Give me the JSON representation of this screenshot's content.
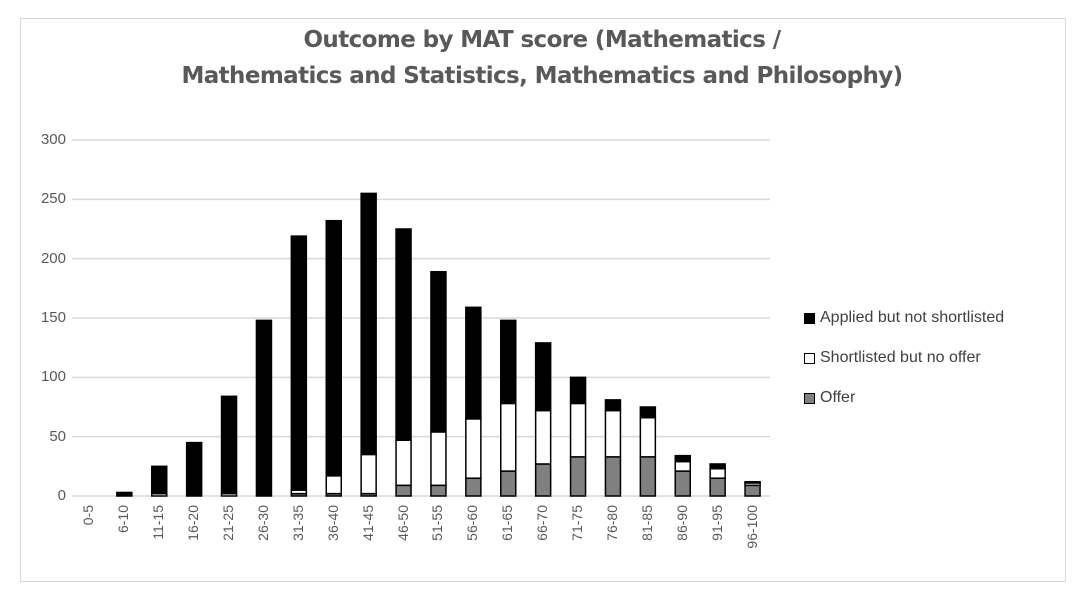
{
  "chart_data": {
    "type": "bar",
    "stacked": true,
    "title": "Outcome by MAT score (Mathematics / Mathematics and Statistics, Mathematics and Philosophy)",
    "title_lines": [
      "Outcome by MAT score (Mathematics /",
      "Mathematics and Statistics, Mathematics and Philosophy)"
    ],
    "xlabel": "",
    "ylabel": "",
    "ylim": [
      0,
      300
    ],
    "yticks": [
      0,
      50,
      100,
      150,
      200,
      250,
      300
    ],
    "grid": true,
    "legend_position": "right",
    "categories": [
      "0-5",
      "6-10",
      "11-15",
      "16-20",
      "21-25",
      "26-30",
      "31-35",
      "36-40",
      "41-45",
      "46-50",
      "51-55",
      "56-60",
      "61-65",
      "66-70",
      "71-75",
      "76-80",
      "81-85",
      "86-90",
      "91-95",
      "96-100"
    ],
    "series": [
      {
        "name": "Offer",
        "color": "#808080",
        "values": [
          0,
          0,
          0,
          0,
          0,
          0,
          2,
          2,
          2,
          9,
          9,
          15,
          21,
          27,
          33,
          33,
          33,
          21,
          15,
          9
        ]
      },
      {
        "name": "Shortlisted but no offer",
        "color": "#ffffff",
        "values": [
          0,
          0,
          2,
          0,
          2,
          0,
          3,
          15,
          33,
          38,
          45,
          50,
          57,
          45,
          45,
          39,
          33,
          8,
          8,
          2
        ]
      },
      {
        "name": "Applied but not shortlisted",
        "color": "#000000",
        "values": [
          0,
          3,
          23,
          45,
          82,
          148,
          214,
          215,
          220,
          178,
          135,
          94,
          70,
          57,
          22,
          9,
          9,
          5,
          4,
          1
        ]
      }
    ],
    "totals": [
      0,
      3,
      25,
      45,
      84,
      148,
      219,
      232,
      255,
      225,
      189,
      159,
      148,
      129,
      100,
      81,
      75,
      34,
      27,
      12
    ]
  },
  "legend": [
    {
      "label": "Applied but not shortlisted",
      "color": "#000000"
    },
    {
      "label": "Shortlisted but no offer",
      "color": "#ffffff"
    },
    {
      "label": "Offer",
      "color": "#808080"
    }
  ]
}
